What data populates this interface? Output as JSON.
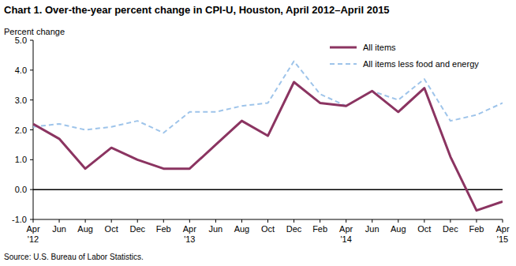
{
  "chart_data": {
    "type": "line",
    "title": "Chart 1. Over-the-year percent change in CPI-U, Houston,  April 2012–April 2015",
    "y_label": "Percent change",
    "source": "Source: U.S. Bureau of Labor Statistics.",
    "categories": [
      "Apr '12",
      "Jun",
      "Aug",
      "Oct",
      "Dec",
      "Feb",
      "Apr '13",
      "Jun",
      "Aug",
      "Oct",
      "Dec",
      "Feb",
      "Apr '14",
      "Jun",
      "Aug",
      "Oct",
      "Dec",
      "Feb",
      "Apr '15"
    ],
    "series": [
      {
        "name": "All items",
        "color": "#8b3461",
        "line_style": "solid",
        "values": [
          2.2,
          1.7,
          0.7,
          1.4,
          1.0,
          0.7,
          0.7,
          1.5,
          2.3,
          1.8,
          3.6,
          2.9,
          2.8,
          3.3,
          2.6,
          3.4,
          1.1,
          -0.7,
          -0.4
        ]
      },
      {
        "name": "All items less food and energy",
        "color": "#9ec4ea",
        "line_style": "dashed",
        "values": [
          2.1,
          2.2,
          2.0,
          2.1,
          2.3,
          1.9,
          2.6,
          2.6,
          2.8,
          2.9,
          4.3,
          3.2,
          2.8,
          3.3,
          3.0,
          3.7,
          2.3,
          2.5,
          2.9
        ]
      }
    ],
    "ylim": [
      -1.0,
      5.0
    ],
    "yticks": [
      {
        "value": -1.0,
        "label": "-1.0"
      },
      {
        "value": 0.0,
        "label": "0.0"
      },
      {
        "value": 1.0,
        "label": "1.0"
      },
      {
        "value": 2.0,
        "label": "2.0"
      },
      {
        "value": 3.0,
        "label": "3.0"
      },
      {
        "value": 4.0,
        "label": "4.0"
      },
      {
        "value": 5.0,
        "label": "5.0"
      }
    ],
    "grid": false,
    "legend": "upper right"
  }
}
